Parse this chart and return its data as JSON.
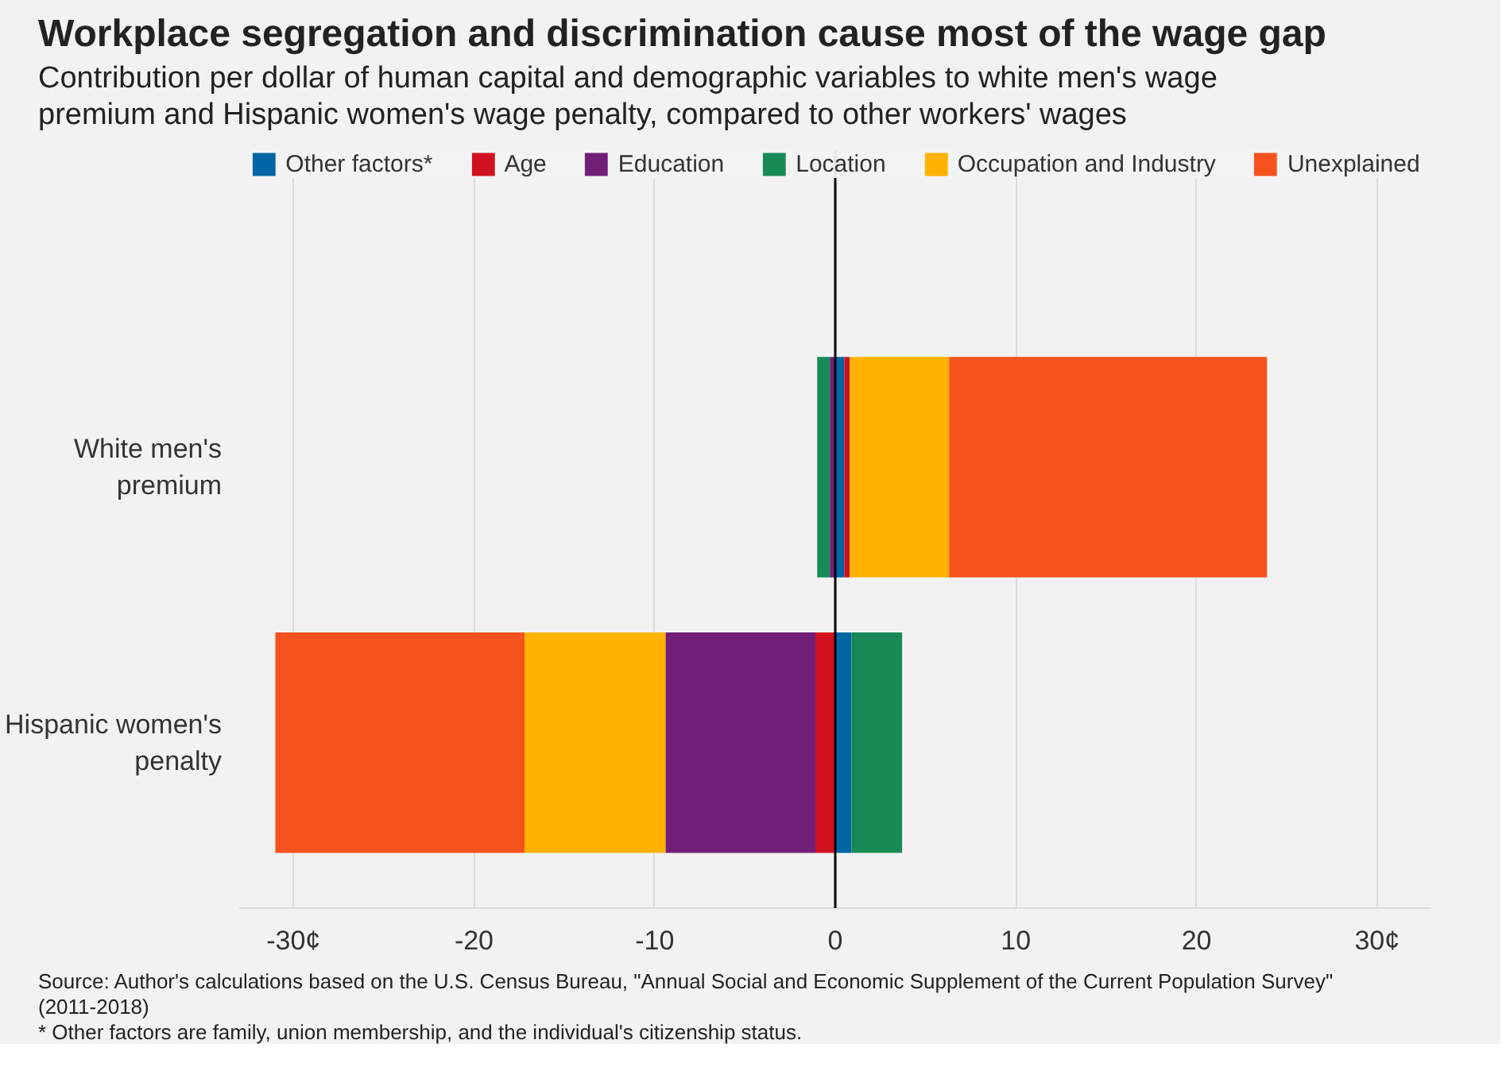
{
  "chart_data": {
    "type": "bar",
    "orientation": "horizontal",
    "stacked": true,
    "title": "Workplace segregation and discrimination cause most of the wage gap",
    "subtitle": "Contribution per dollar of human capital and demographic variables to white men's wage\npremium and Hispanic women's wage penalty, compared to other workers' wages",
    "categories": [
      "White men's premium",
      "Hispanic women's penalty"
    ],
    "series": [
      {
        "name": "Other factors*",
        "color": "#0066a6",
        "values": [
          0.5,
          0.9
        ]
      },
      {
        "name": "Age",
        "color": "#d0111f",
        "values": [
          0.3,
          -1.1
        ]
      },
      {
        "name": "Education",
        "color": "#721f79",
        "values": [
          -0.3,
          -8.3
        ]
      },
      {
        "name": "Location",
        "color": "#188a55",
        "values": [
          -0.7,
          2.8
        ]
      },
      {
        "name": "Occupation and Industry",
        "color": "#ffb300",
        "values": [
          5.5,
          -7.8
        ]
      },
      {
        "name": "Unexplained",
        "color": "#f6521e",
        "values": [
          17.6,
          -13.8
        ]
      }
    ],
    "xlim": [
      -33,
      33
    ],
    "xticks": [
      {
        "value": -30,
        "label": "-30¢"
      },
      -20,
      -10,
      0,
      10,
      20,
      {
        "value": 30,
        "label": "30¢"
      }
    ],
    "grid": "x",
    "legend": "top",
    "ref_lines": [
      {
        "axis": "x",
        "value": 0,
        "color": "#000000"
      }
    ],
    "annotations": [
      "Source: Author's calculations based on the U.S. Census Bureau, \"Annual Social and Economic Supplement of the Current Population Survey\"\n(2011-2018)",
      "* Other factors are family, union membership, and the individual's citizenship status."
    ]
  }
}
